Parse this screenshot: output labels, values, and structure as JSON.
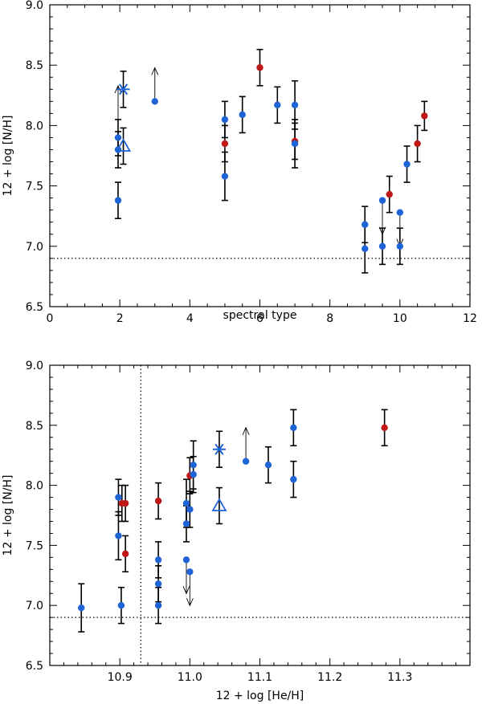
{
  "chart_data": [
    {
      "type": "scatter",
      "xlabel": "spectral type",
      "ylabel": "12 + log [N/H]",
      "xlim": [
        0,
        12
      ],
      "ylim": [
        6.5,
        9.0
      ],
      "xticks": [
        0,
        2,
        4,
        6,
        8,
        10,
        12
      ],
      "yticks": [
        6.5,
        7.0,
        7.5,
        8.0,
        8.5,
        9.0
      ],
      "reference_line": {
        "axis": "y",
        "value": 6.9,
        "style": "dotted"
      },
      "colors": {
        "blue": "#1f64d6",
        "red": "#c01818"
      },
      "points": [
        {
          "x": 1.95,
          "y": 7.9,
          "err": 0.15,
          "color": "blue"
        },
        {
          "x": 1.95,
          "y": 7.8,
          "err": 0.15,
          "color": "blue"
        },
        {
          "x": 1.95,
          "y": 7.38,
          "err": 0.15,
          "color": "blue"
        },
        {
          "x": 3.0,
          "y": 8.2,
          "color": "blue"
        },
        {
          "x": 5.0,
          "y": 8.05,
          "err": 0.15,
          "color": "blue"
        },
        {
          "x": 5.0,
          "y": 7.85,
          "err": 0.15,
          "color": "red"
        },
        {
          "x": 5.0,
          "y": 7.58,
          "err": 0.2,
          "color": "blue"
        },
        {
          "x": 5.5,
          "y": 8.09,
          "err": 0.15,
          "color": "blue"
        },
        {
          "x": 6.0,
          "y": 8.48,
          "err": 0.15,
          "color": "red"
        },
        {
          "x": 6.5,
          "y": 8.17,
          "err": 0.15,
          "color": "blue"
        },
        {
          "x": 7.0,
          "y": 8.17,
          "err": 0.2,
          "color": "blue"
        },
        {
          "x": 7.0,
          "y": 7.87,
          "err": 0.15,
          "color": "red"
        },
        {
          "x": 7.0,
          "y": 7.85,
          "err": 0.2,
          "color": "blue"
        },
        {
          "x": 9.0,
          "y": 7.18,
          "err": 0.15,
          "color": "blue"
        },
        {
          "x": 9.0,
          "y": 6.98,
          "err": 0.2,
          "color": "blue"
        },
        {
          "x": 9.5,
          "y": 7.38,
          "color": "blue"
        },
        {
          "x": 9.5,
          "y": 7.0,
          "err": 0.15,
          "color": "blue"
        },
        {
          "x": 9.7,
          "y": 7.43,
          "err": 0.15,
          "color": "red"
        },
        {
          "x": 10.0,
          "y": 7.28,
          "color": "blue"
        },
        {
          "x": 10.0,
          "y": 7.0,
          "err": 0.15,
          "color": "blue"
        },
        {
          "x": 10.2,
          "y": 7.68,
          "err": 0.15,
          "color": "blue"
        },
        {
          "x": 10.5,
          "y": 7.85,
          "err": 0.15,
          "color": "red"
        },
        {
          "x": 10.7,
          "y": 8.08,
          "err": 0.12,
          "color": "red"
        }
      ],
      "limits": [
        {
          "x": 3.0,
          "y": 8.2,
          "direction": "up"
        },
        {
          "x": 1.95,
          "y": 8.05,
          "direction": "up"
        },
        {
          "x": 9.5,
          "y": 7.38,
          "direction": "down"
        },
        {
          "x": 10.0,
          "y": 7.28,
          "direction": "down"
        }
      ],
      "special_markers": [
        {
          "marker": "asterisk",
          "x": 2.1,
          "y": 8.3,
          "err": 0.15,
          "color": "blue"
        },
        {
          "marker": "triangle",
          "x": 2.1,
          "y": 7.83,
          "err": 0.15,
          "color": "blue"
        }
      ]
    },
    {
      "type": "scatter",
      "xlabel": "12 + log [He/H]",
      "ylabel": "12 + log [N/H]",
      "xlim": [
        10.8,
        11.4
      ],
      "ylim": [
        6.5,
        9.0
      ],
      "xticks": [
        10.9,
        11.0,
        11.1,
        11.2,
        11.3
      ],
      "xtick_labels": [
        "10.9",
        "11.0",
        "11.1",
        "11.2",
        "11.3"
      ],
      "yticks": [
        6.5,
        7.0,
        7.5,
        8.0,
        8.5,
        9.0
      ],
      "reference_line": {
        "axis": "y",
        "value": 6.9,
        "style": "dotted"
      },
      "reference_vline": {
        "axis": "x",
        "value": 10.93,
        "style": "dotted"
      },
      "colors": {
        "blue": "#1f64d6",
        "red": "#c01818"
      },
      "points": [
        {
          "x": 10.845,
          "y": 6.98,
          "err": 0.2,
          "color": "blue"
        },
        {
          "x": 10.898,
          "y": 7.9,
          "err": 0.15,
          "color": "blue"
        },
        {
          "x": 10.898,
          "y": 7.58,
          "err": 0.2,
          "color": "blue"
        },
        {
          "x": 10.902,
          "y": 7.0,
          "err": 0.15,
          "color": "blue"
        },
        {
          "x": 10.903,
          "y": 7.85,
          "err": 0.15,
          "color": "red"
        },
        {
          "x": 10.908,
          "y": 7.85,
          "err": 0.15,
          "color": "red"
        },
        {
          "x": 10.908,
          "y": 7.43,
          "err": 0.15,
          "color": "red"
        },
        {
          "x": 10.955,
          "y": 7.87,
          "err": 0.15,
          "color": "red"
        },
        {
          "x": 10.955,
          "y": 7.38,
          "err": 0.15,
          "color": "blue"
        },
        {
          "x": 10.955,
          "y": 7.18,
          "err": 0.15,
          "color": "blue"
        },
        {
          "x": 10.955,
          "y": 7.0,
          "err": 0.15,
          "color": "blue"
        },
        {
          "x": 10.995,
          "y": 7.85,
          "err": 0.2,
          "color": "blue"
        },
        {
          "x": 10.995,
          "y": 7.68,
          "err": 0.15,
          "color": "blue"
        },
        {
          "x": 10.995,
          "y": 7.38,
          "color": "blue"
        },
        {
          "x": 11.0,
          "y": 8.08,
          "err": 0.15,
          "color": "red"
        },
        {
          "x": 11.0,
          "y": 7.8,
          "err": 0.15,
          "color": "blue"
        },
        {
          "x": 11.0,
          "y": 7.28,
          "color": "blue"
        },
        {
          "x": 11.005,
          "y": 8.17,
          "err": 0.2,
          "color": "blue"
        },
        {
          "x": 11.005,
          "y": 8.09,
          "err": 0.15,
          "color": "blue"
        },
        {
          "x": 11.08,
          "y": 8.2,
          "color": "blue"
        },
        {
          "x": 11.112,
          "y": 8.17,
          "err": 0.15,
          "color": "blue"
        },
        {
          "x": 11.148,
          "y": 8.48,
          "err": 0.15,
          "color": "blue"
        },
        {
          "x": 11.148,
          "y": 8.05,
          "err": 0.15,
          "color": "blue"
        },
        {
          "x": 11.278,
          "y": 8.48,
          "err": 0.15,
          "color": "red"
        }
      ],
      "limits": [
        {
          "x": 11.08,
          "y": 8.2,
          "direction": "up"
        },
        {
          "x": 10.995,
          "y": 7.38,
          "direction": "down"
        },
        {
          "x": 11.0,
          "y": 7.28,
          "direction": "down"
        }
      ],
      "special_markers": [
        {
          "marker": "asterisk",
          "x": 11.042,
          "y": 8.3,
          "err": 0.15,
          "color": "blue"
        },
        {
          "marker": "triangle",
          "x": 11.042,
          "y": 7.83,
          "err": 0.15,
          "color": "blue"
        }
      ]
    }
  ]
}
